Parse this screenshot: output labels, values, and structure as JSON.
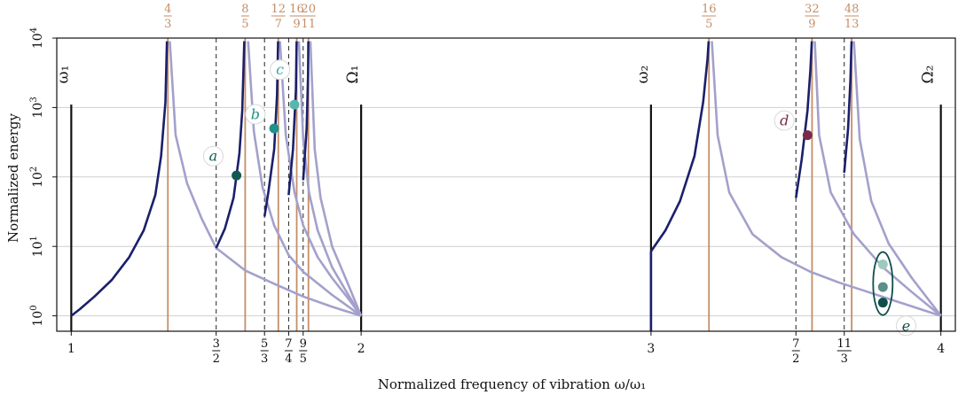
{
  "chart_data": {
    "type": "line",
    "xlabel": "Normalized frequency of vibration ω/ω₁",
    "ylabel": "Normalized energy",
    "xlim": [
      0.95,
      4.05
    ],
    "ylim": [
      0.6,
      10000
    ],
    "y_scale": "log",
    "grid": "horizontal",
    "x_ticks": [
      {
        "value": 1,
        "text": "1"
      },
      {
        "value": 2,
        "text": "2"
      },
      {
        "value": 3,
        "text": "3"
      },
      {
        "value": 4,
        "text": "4"
      }
    ],
    "x_frac_ticks": [
      {
        "value": 1.5,
        "num": "3",
        "den": "2"
      },
      {
        "value": 1.6667,
        "num": "5",
        "den": "3"
      },
      {
        "value": 1.75,
        "num": "7",
        "den": "4"
      },
      {
        "value": 1.8,
        "num": "9",
        "den": "5"
      },
      {
        "value": 3.5,
        "num": "7",
        "den": "2"
      },
      {
        "value": 3.6667,
        "num": "11",
        "den": "3"
      }
    ],
    "y_ticks": [
      {
        "value": 1,
        "base": "10",
        "exp": "0"
      },
      {
        "value": 10,
        "base": "10",
        "exp": "1"
      },
      {
        "value": 100,
        "base": "10",
        "exp": "2"
      },
      {
        "value": 1000,
        "base": "10",
        "exp": "3"
      },
      {
        "value": 10000,
        "base": "10",
        "exp": "4"
      }
    ],
    "resonances": [
      {
        "value": 1.3333,
        "num": "4",
        "den": "3"
      },
      {
        "value": 1.6,
        "num": "8",
        "den": "5"
      },
      {
        "value": 1.7143,
        "num": "12",
        "den": "7"
      },
      {
        "value": 1.7778,
        "num": "16",
        "den": "9"
      },
      {
        "value": 1.8182,
        "num": "20",
        "den": "11"
      },
      {
        "value": 3.2,
        "num": "16",
        "den": "5"
      },
      {
        "value": 3.5556,
        "num": "32",
        "den": "9"
      },
      {
        "value": 3.6923,
        "num": "48",
        "den": "13"
      }
    ],
    "bounds": [
      {
        "value": 1,
        "label": "ω₁"
      },
      {
        "value": 2,
        "label": "Ω₁"
      },
      {
        "value": 3,
        "label": "ω₂"
      },
      {
        "value": 4,
        "label": "Ω₂"
      }
    ],
    "dashed_lines": [
      1.5,
      1.6667,
      1.75,
      1.8,
      3.5,
      3.6667
    ],
    "light_curves": [
      {
        "x": [
          1.34,
          1.36,
          1.4,
          1.45,
          1.5,
          1.6,
          1.7,
          1.8,
          1.9,
          2.0
        ],
        "y": [
          9000,
          400,
          80,
          25,
          9.5,
          4.5,
          2.9,
          1.9,
          1.35,
          1.0
        ]
      },
      {
        "x": [
          1.61,
          1.63,
          1.66,
          1.7,
          1.75,
          1.8,
          1.9,
          2.0
        ],
        "y": [
          9000,
          450,
          70,
          20,
          7.5,
          4.3,
          2.0,
          1.0
        ]
      },
      {
        "x": [
          1.72,
          1.74,
          1.77,
          1.8,
          1.85,
          1.9,
          1.95,
          2.0
        ],
        "y": [
          9000,
          400,
          60,
          20,
          7.0,
          3.5,
          1.9,
          1.0
        ]
      },
      {
        "x": [
          1.785,
          1.8,
          1.82,
          1.85,
          1.9,
          1.95,
          2.0
        ],
        "y": [
          9000,
          350,
          60,
          17,
          5.0,
          2.2,
          1.0
        ]
      },
      {
        "x": [
          1.825,
          1.84,
          1.86,
          1.9,
          1.95,
          2.0
        ],
        "y": [
          9000,
          250,
          50,
          10,
          3.2,
          1.0
        ]
      },
      {
        "x": [
          3.21,
          3.23,
          3.27,
          3.35,
          3.45,
          3.55,
          3.65,
          3.75,
          3.85,
          4.0
        ],
        "y": [
          9000,
          400,
          60,
          15,
          7.0,
          4.3,
          3.0,
          2.2,
          1.6,
          1.0
        ]
      },
      {
        "x": [
          3.565,
          3.58,
          3.62,
          3.7,
          3.8,
          3.9,
          4.0
        ],
        "y": [
          9000,
          400,
          60,
          15,
          5.0,
          2.2,
          1.0
        ]
      },
      {
        "x": [
          3.7,
          3.72,
          3.76,
          3.82,
          3.9,
          4.0
        ],
        "y": [
          9000,
          350,
          45,
          11,
          3.5,
          1.0
        ]
      }
    ],
    "dark_curves": [
      {
        "x": [
          1.0,
          1.03,
          1.08,
          1.14,
          1.2,
          1.25,
          1.29,
          1.31,
          1.325,
          1.33
        ],
        "y": [
          1.0,
          1.25,
          1.9,
          3.3,
          7.0,
          17,
          55,
          200,
          1200,
          9000
        ]
      },
      {
        "x": [
          1.5,
          1.53,
          1.56,
          1.58,
          1.59,
          1.597
        ],
        "y": [
          9.5,
          18,
          50,
          220,
          900,
          9000
        ]
      },
      {
        "x": [
          1.6667,
          1.68,
          1.7,
          1.71,
          1.7135
        ],
        "y": [
          27,
          60,
          250,
          1500,
          9000
        ]
      },
      {
        "x": [
          1.75,
          1.765,
          1.775,
          1.7775
        ],
        "y": [
          55,
          250,
          1800,
          9000
        ]
      },
      {
        "x": [
          1.8,
          1.812,
          1.817,
          1.8178
        ],
        "y": [
          90,
          500,
          3000,
          9000
        ]
      },
      {
        "x": [
          3.0,
          3.0
        ],
        "y": [
          0.6,
          8.5
        ]
      },
      {
        "x": [
          3.0,
          3.05,
          3.1,
          3.15,
          3.18,
          3.195,
          3.199
        ],
        "y": [
          8.5,
          17,
          45,
          200,
          1200,
          5000,
          9000
        ]
      },
      {
        "x": [
          3.5,
          3.52,
          3.54,
          3.55,
          3.555
        ],
        "y": [
          50,
          180,
          900,
          3500,
          9000
        ]
      },
      {
        "x": [
          3.6667,
          3.68,
          3.688,
          3.692
        ],
        "y": [
          115,
          500,
          2500,
          9000
        ]
      }
    ],
    "points": [
      {
        "id": "a",
        "x": 1.57,
        "y": 105,
        "color": "#0e5a52"
      },
      {
        "id": "b",
        "x": 1.7,
        "y": 500,
        "color": "#1f918a"
      },
      {
        "id": "c",
        "x": 1.77,
        "y": 1100,
        "color": "#58b6ae"
      },
      {
        "id": "d",
        "x": 3.54,
        "y": 400,
        "color": "#7a2a48"
      },
      {
        "id": "e1",
        "x": 3.8,
        "y": 5.5,
        "color": "#9ec8c0"
      },
      {
        "id": "e2",
        "x": 3.8,
        "y": 2.6,
        "color": "#5a8f8a"
      },
      {
        "id": "e3",
        "x": 3.8,
        "y": 1.55,
        "color": "#0e4f4a"
      }
    ],
    "annotations": [
      {
        "text": "a",
        "x": 1.49,
        "y": 200,
        "color": "#0e5a52"
      },
      {
        "text": "b",
        "x": 1.635,
        "y": 800,
        "color": "#1f918a"
      },
      {
        "text": "c",
        "x": 1.72,
        "y": 3500,
        "color": "#39a69e"
      },
      {
        "text": "d",
        "x": 3.46,
        "y": 650,
        "color": "#7a2a48"
      },
      {
        "text": "e",
        "x": 3.88,
        "y": 0.72,
        "color": "#0e4f4a"
      }
    ],
    "colors": {
      "dark_curve": "#1b1f6b",
      "light_curve": "#a3a1cb",
      "resonance": "#c48e68",
      "bound": "#111111",
      "grid": "#cfcfcf"
    }
  }
}
